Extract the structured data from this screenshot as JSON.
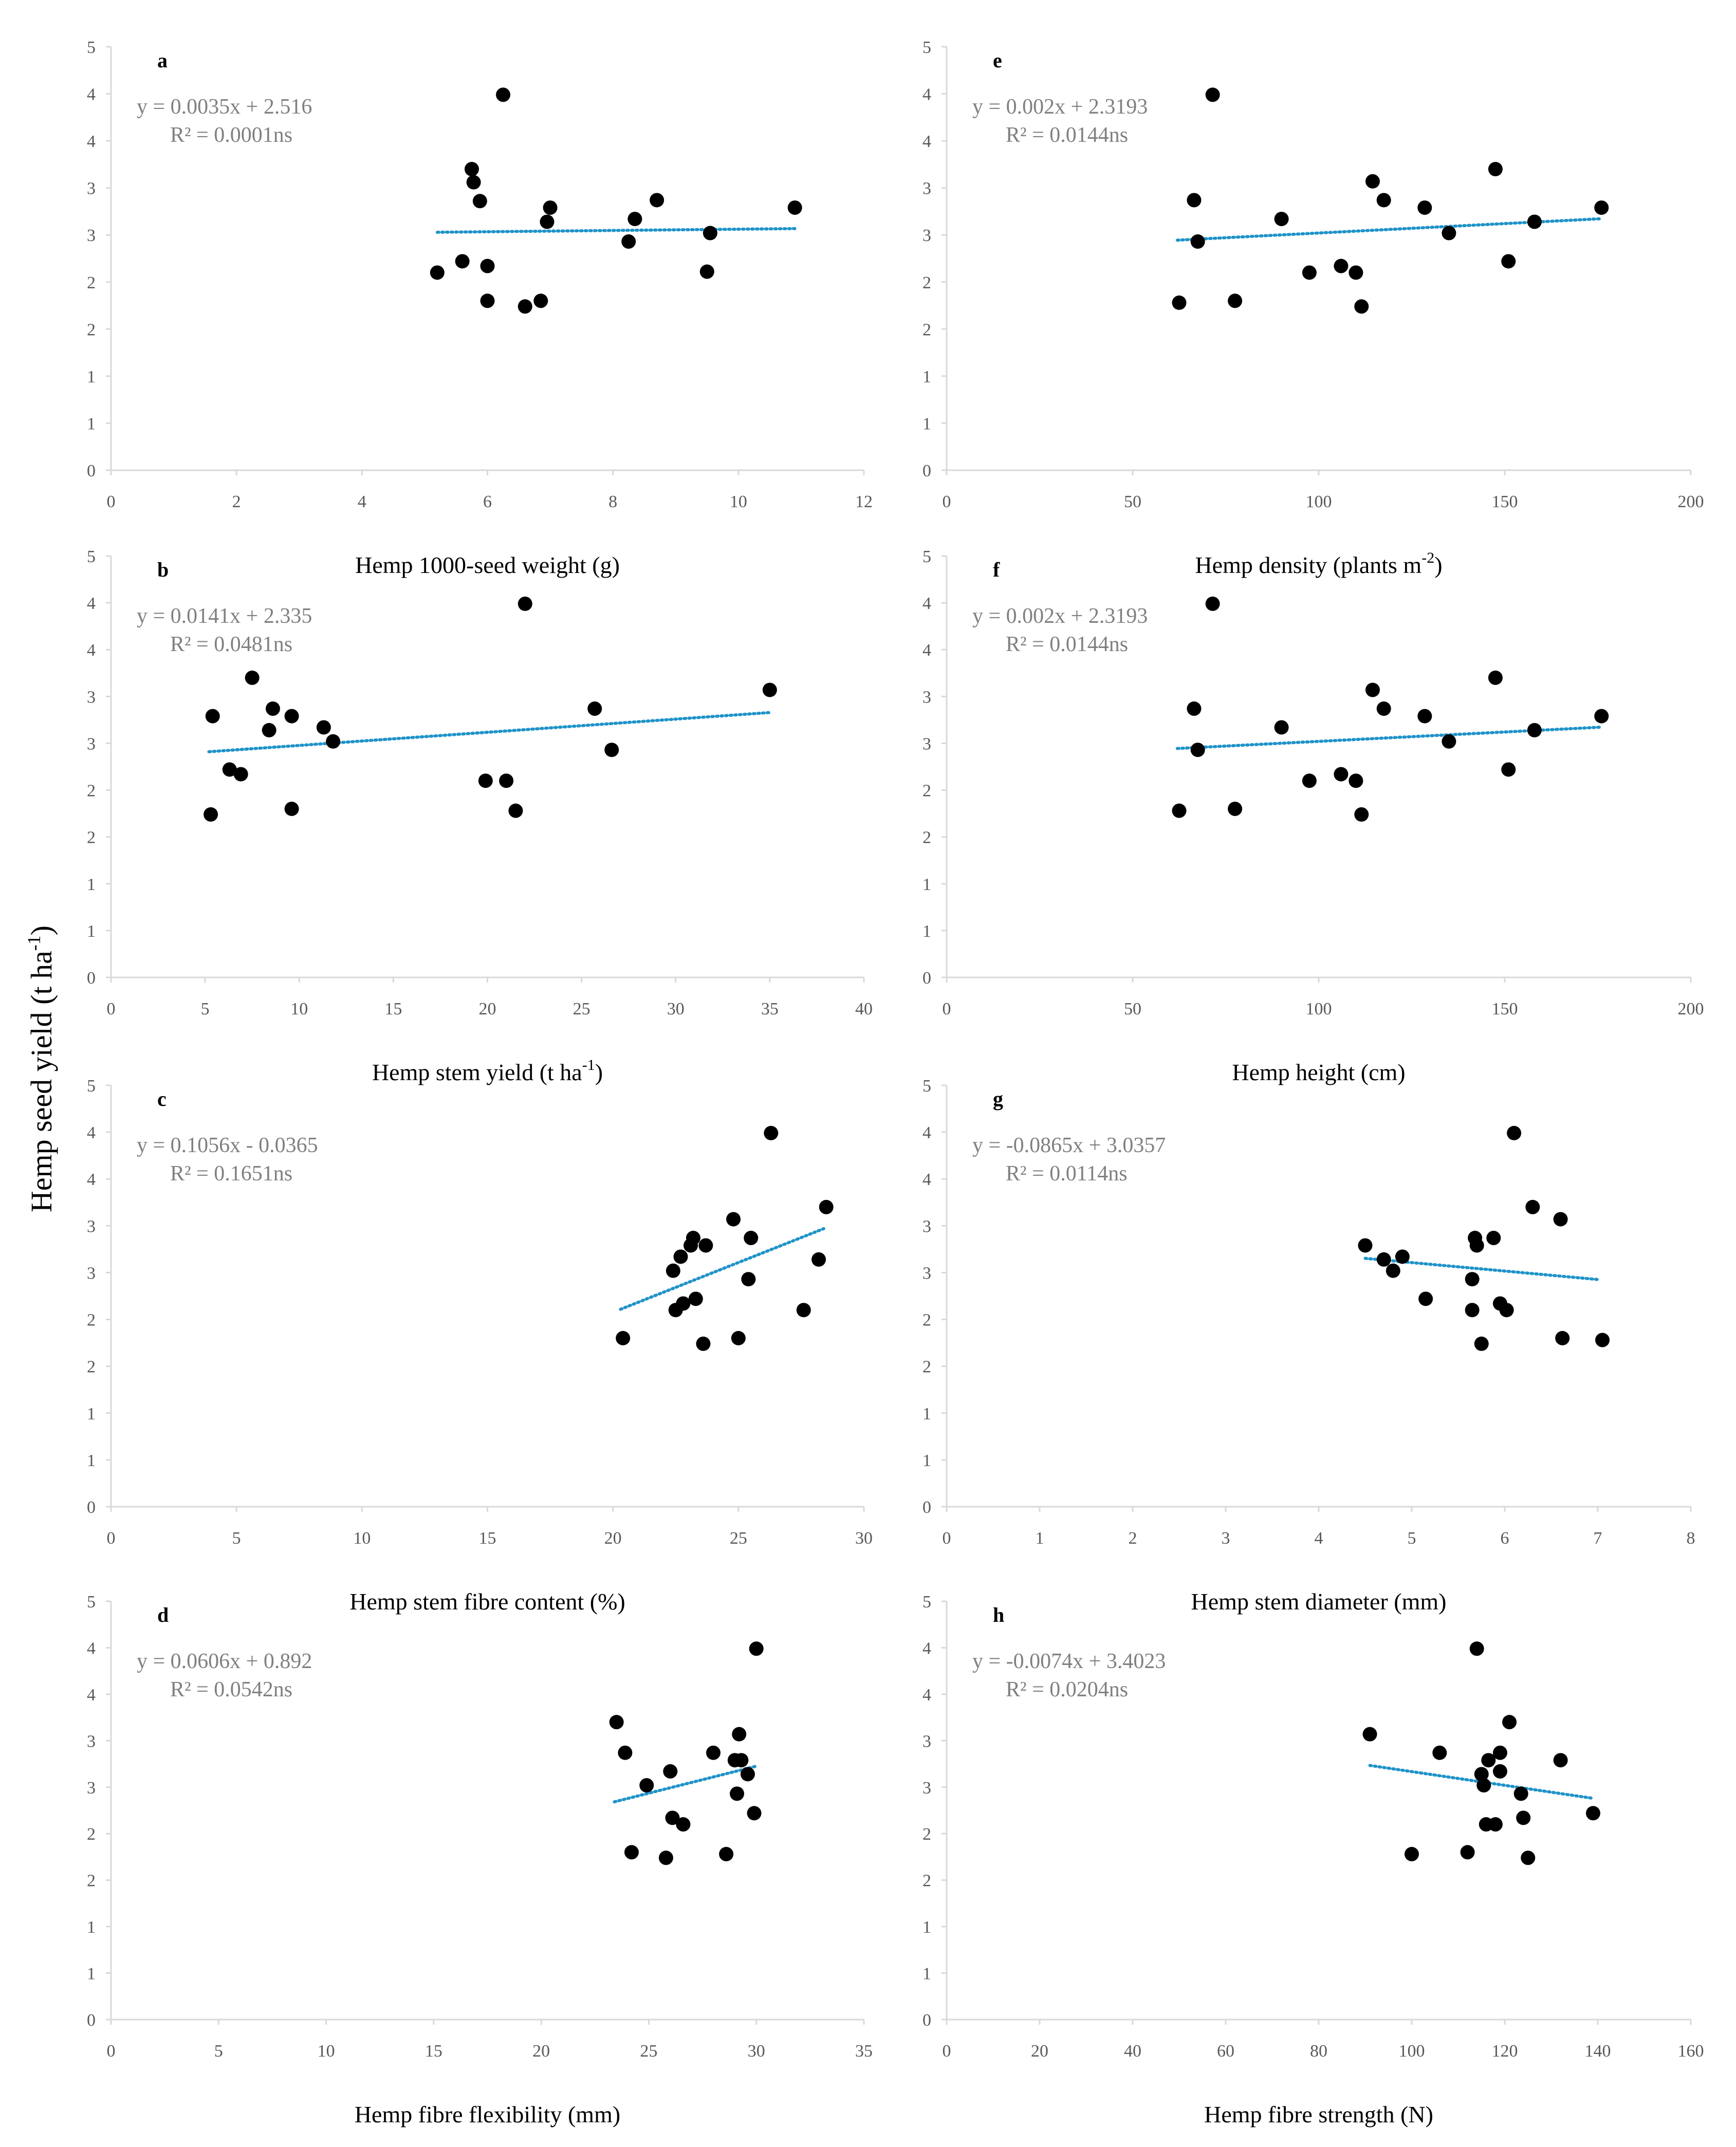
{
  "y_axis_label": "Hemp seed yield",
  "y_axis_unit": "(t ha",
  "y_axis_unit_sup": "-1",
  "y_axis_unit_end": ")",
  "chart_data": [
    {
      "type": "scatter",
      "panel": "a",
      "xlabel": "Hemp 1000-seed weight  (g)",
      "xlabel_sup": "",
      "xlabel_end": "",
      "xlim": [
        0,
        12
      ],
      "xticks": [
        0,
        2,
        4,
        6,
        8,
        10,
        12
      ],
      "ylim": [
        0,
        4.5
      ],
      "ytick_labels": [
        "0",
        "1",
        "1",
        "2",
        "2",
        "3",
        "3",
        "4",
        "4",
        "5"
      ],
      "equation": "y = 0.0035x + 2.516",
      "r2": "R² = 0.0001ns",
      "trend_x": [
        5.2,
        10.9
      ],
      "points": [
        [
          5.2,
          2.1
        ],
        [
          5.6,
          2.22
        ],
        [
          5.75,
          3.2
        ],
        [
          5.78,
          3.06
        ],
        [
          5.88,
          2.86
        ],
        [
          6.0,
          2.17
        ],
        [
          6.0,
          1.8
        ],
        [
          6.25,
          3.99
        ],
        [
          6.6,
          1.74
        ],
        [
          6.85,
          1.8
        ],
        [
          6.95,
          2.64
        ],
        [
          7.0,
          2.79
        ],
        [
          8.25,
          2.43
        ],
        [
          8.35,
          2.67
        ],
        [
          8.7,
          2.87
        ],
        [
          9.5,
          2.11
        ],
        [
          9.55,
          2.52
        ],
        [
          10.9,
          2.79
        ]
      ]
    },
    {
      "type": "scatter",
      "panel": "b",
      "xlabel": "Hemp stem yield  (t ha",
      "xlabel_sup": "-1",
      "xlabel_end": ")",
      "xlim": [
        0,
        40
      ],
      "xticks": [
        0,
        5,
        10,
        15,
        20,
        25,
        30,
        35,
        40
      ],
      "ylim": [
        0,
        4.5
      ],
      "ytick_labels": [
        "0",
        "1",
        "1",
        "2",
        "2",
        "3",
        "3",
        "4",
        "4",
        "5"
      ],
      "equation": "y = 0.0141x + 2.335",
      "r2": "R² = 0.0481ns",
      "trend_x": [
        5.2,
        35.0
      ],
      "points": [
        [
          5.3,
          1.74
        ],
        [
          5.4,
          2.79
        ],
        [
          6.3,
          2.22
        ],
        [
          6.9,
          2.17
        ],
        [
          7.5,
          3.2
        ],
        [
          8.4,
          2.64
        ],
        [
          8.6,
          2.87
        ],
        [
          9.6,
          2.79
        ],
        [
          9.6,
          1.8
        ],
        [
          11.3,
          2.67
        ],
        [
          11.8,
          2.52
        ],
        [
          19.9,
          2.1
        ],
        [
          21.0,
          2.1
        ],
        [
          21.5,
          1.78
        ],
        [
          22.0,
          3.99
        ],
        [
          25.7,
          2.87
        ],
        [
          26.6,
          2.43
        ],
        [
          35.0,
          3.07
        ]
      ]
    },
    {
      "type": "scatter",
      "panel": "c",
      "xlabel": "Hemp stem fibre content  (%)",
      "xlabel_sup": "",
      "xlabel_end": "",
      "xlim": [
        0,
        30
      ],
      "xticks": [
        0,
        5,
        10,
        15,
        20,
        25,
        30
      ],
      "ylim": [
        0,
        4.5
      ],
      "ytick_labels": [
        "0",
        "1",
        "1",
        "2",
        "2",
        "3",
        "3",
        "4",
        "4",
        "5"
      ],
      "equation": "y = 0.1056x - 0.0365",
      "r2": "R² = 0.1651ns",
      "trend_x": [
        20.3,
        28.4
      ],
      "points": [
        [
          20.4,
          1.8
        ],
        [
          22.4,
          2.52
        ],
        [
          22.5,
          2.1
        ],
        [
          22.7,
          2.67
        ],
        [
          22.8,
          2.17
        ],
        [
          23.1,
          2.79
        ],
        [
          23.2,
          2.87
        ],
        [
          23.3,
          2.22
        ],
        [
          23.6,
          1.74
        ],
        [
          23.7,
          2.79
        ],
        [
          24.8,
          3.07
        ],
        [
          25.0,
          1.8
        ],
        [
          25.4,
          2.43
        ],
        [
          25.5,
          2.87
        ],
        [
          26.3,
          3.99
        ],
        [
          27.6,
          2.1
        ],
        [
          28.2,
          2.64
        ],
        [
          28.5,
          3.2
        ]
      ]
    },
    {
      "type": "scatter",
      "panel": "d",
      "xlabel": "Hemp fibre flexibility  (mm)",
      "xlabel_sup": "",
      "xlabel_end": "",
      "xlim": [
        0,
        35
      ],
      "xticks": [
        0,
        5,
        10,
        15,
        20,
        25,
        30,
        35
      ],
      "ylim": [
        0,
        4.5
      ],
      "ytick_labels": [
        "0",
        "1",
        "1",
        "2",
        "2",
        "3",
        "3",
        "4",
        "4",
        "5"
      ],
      "equation": "y = 0.0606x + 0.892",
      "r2": "R² = 0.0542ns",
      "trend_x": [
        23.4,
        30.0
      ],
      "points": [
        [
          23.5,
          3.2
        ],
        [
          23.9,
          2.87
        ],
        [
          24.2,
          1.8
        ],
        [
          24.9,
          2.52
        ],
        [
          25.8,
          1.74
        ],
        [
          26.0,
          2.67
        ],
        [
          26.1,
          2.17
        ],
        [
          26.6,
          2.1
        ],
        [
          28.0,
          2.87
        ],
        [
          28.6,
          1.78
        ],
        [
          29.0,
          2.79
        ],
        [
          29.1,
          2.43
        ],
        [
          29.2,
          3.07
        ],
        [
          29.3,
          2.79
        ],
        [
          29.6,
          2.64
        ],
        [
          29.9,
          2.22
        ],
        [
          30.0,
          3.99
        ]
      ]
    },
    {
      "type": "scatter",
      "panel": "e",
      "xlabel": "Hemp density  (plants m",
      "xlabel_sup": "-2",
      "xlabel_end": ")",
      "xlim": [
        0,
        200
      ],
      "xticks": [
        0,
        50,
        100,
        150,
        200
      ],
      "ylim": [
        0,
        4.5
      ],
      "ytick_labels": [
        "0",
        "1",
        "1",
        "2",
        "2",
        "3",
        "3",
        "4",
        "4",
        "5"
      ],
      "equation": "y = 0.002x + 2.3193",
      "r2": "R² = 0.0144ns",
      "trend_x": [
        62,
        176
      ],
      "points": [
        [
          62.5,
          1.78
        ],
        [
          66.5,
          2.87
        ],
        [
          67.5,
          2.43
        ],
        [
          71.5,
          3.99
        ],
        [
          77.5,
          1.8
        ],
        [
          90,
          2.67
        ],
        [
          97.5,
          2.1
        ],
        [
          106,
          2.17
        ],
        [
          110,
          2.1
        ],
        [
          111.5,
          1.74
        ],
        [
          114.5,
          3.07
        ],
        [
          117.5,
          2.87
        ],
        [
          128.5,
          2.79
        ],
        [
          135,
          2.52
        ],
        [
          147.5,
          3.2
        ],
        [
          151,
          2.22
        ],
        [
          158,
          2.64
        ],
        [
          176,
          2.79
        ]
      ]
    },
    {
      "type": "scatter",
      "panel": "f",
      "xlabel": "Hemp height  (cm)",
      "xlabel_sup": "",
      "xlabel_end": "",
      "xlim": [
        0,
        200
      ],
      "xticks": [
        0,
        50,
        100,
        150,
        200
      ],
      "ylim": [
        0,
        4.5
      ],
      "ytick_labels": [
        "0",
        "1",
        "1",
        "2",
        "2",
        "3",
        "3",
        "4",
        "4",
        "5"
      ],
      "equation": "y = 0.002x + 2.3193",
      "r2": "R² = 0.0144ns",
      "trend_x": [
        62,
        176
      ],
      "points": [
        [
          62.5,
          1.78
        ],
        [
          66.5,
          2.87
        ],
        [
          67.5,
          2.43
        ],
        [
          71.5,
          3.99
        ],
        [
          77.5,
          1.8
        ],
        [
          90,
          2.67
        ],
        [
          97.5,
          2.1
        ],
        [
          106,
          2.17
        ],
        [
          110,
          2.1
        ],
        [
          111.5,
          1.74
        ],
        [
          114.5,
          3.07
        ],
        [
          117.5,
          2.87
        ],
        [
          128.5,
          2.79
        ],
        [
          135,
          2.52
        ],
        [
          147.5,
          3.2
        ],
        [
          151,
          2.22
        ],
        [
          158,
          2.64
        ],
        [
          176,
          2.79
        ]
      ]
    },
    {
      "type": "scatter",
      "panel": "g",
      "xlabel": "Hemp stem diameter  (mm)",
      "xlabel_sup": "",
      "xlabel_end": "",
      "xlim": [
        0,
        8
      ],
      "xticks": [
        0,
        1,
        2,
        3,
        4,
        5,
        6,
        7,
        8
      ],
      "ylim": [
        0,
        4.5
      ],
      "ytick_labels": [
        "0",
        "1",
        "1",
        "2",
        "2",
        "3",
        "3",
        "4",
        "4",
        "5"
      ],
      "equation": "y = -0.0865x + 3.0357",
      "r2": "R² = 0.0114ns",
      "trend_x": [
        4.5,
        7.0
      ],
      "points": [
        [
          4.5,
          2.79
        ],
        [
          4.7,
          2.64
        ],
        [
          4.8,
          2.52
        ],
        [
          4.9,
          2.67
        ],
        [
          5.15,
          2.22
        ],
        [
          5.65,
          2.43
        ],
        [
          5.65,
          2.1
        ],
        [
          5.68,
          2.87
        ],
        [
          5.7,
          2.79
        ],
        [
          5.75,
          1.74
        ],
        [
          5.88,
          2.87
        ],
        [
          5.95,
          2.17
        ],
        [
          6.02,
          2.1
        ],
        [
          6.1,
          3.99
        ],
        [
          6.3,
          3.2
        ],
        [
          6.6,
          3.07
        ],
        [
          6.62,
          1.8
        ],
        [
          7.05,
          1.78
        ]
      ]
    },
    {
      "type": "scatter",
      "panel": "h",
      "xlabel": "Hemp fibre strength  (N)",
      "xlabel_sup": "",
      "xlabel_end": "",
      "xlim": [
        0,
        160
      ],
      "xticks": [
        0,
        20,
        40,
        60,
        80,
        100,
        120,
        140,
        160
      ],
      "ylim": [
        0,
        4.5
      ],
      "ytick_labels": [
        "0",
        "1",
        "1",
        "2",
        "2",
        "3",
        "3",
        "4",
        "4",
        "5"
      ],
      "equation": "y = -0.0074x + 3.4023",
      "r2": "R² = 0.0204ns",
      "trend_x": [
        91,
        139
      ],
      "points": [
        [
          91,
          3.07
        ],
        [
          100,
          1.78
        ],
        [
          106,
          2.87
        ],
        [
          112,
          1.8
        ],
        [
          114,
          3.99
        ],
        [
          115,
          2.64
        ],
        [
          115.5,
          2.52
        ],
        [
          116,
          2.1
        ],
        [
          116.5,
          2.79
        ],
        [
          118,
          2.1
        ],
        [
          119,
          2.67
        ],
        [
          119,
          2.87
        ],
        [
          121,
          3.2
        ],
        [
          123.5,
          2.43
        ],
        [
          124,
          2.17
        ],
        [
          125,
          1.74
        ],
        [
          132,
          2.79
        ],
        [
          139,
          2.22
        ]
      ]
    }
  ],
  "colors": {
    "points": "#000000",
    "trend": "#1f93c9",
    "axis": "#d9d9d9",
    "text": "#595959"
  }
}
